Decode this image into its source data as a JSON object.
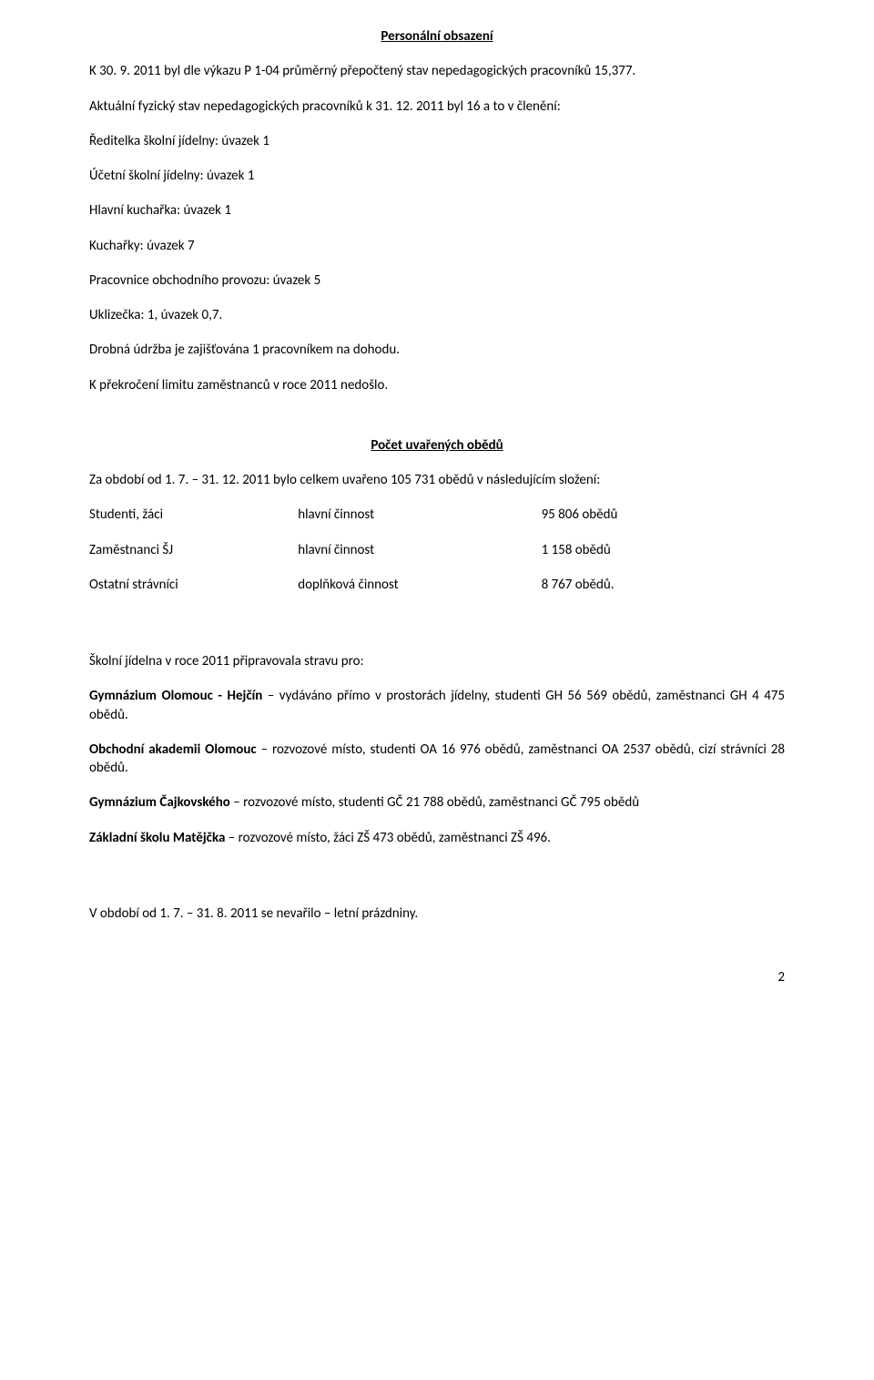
{
  "sec1": {
    "heading": "Personální obsazení",
    "p1": "K 30. 9. 2011 byl dle výkazu P 1-04 průměrný přepočtený stav nepedagogických pracovníků 15,377.",
    "p2": "Aktuální fyzický stav nepedagogických pracovníků k 31. 12. 2011 byl 16 a to v členění:",
    "l1": "Ředitelka školní jídelny: úvazek 1",
    "l2": "Účetní školní jídelny: úvazek 1",
    "l3": "Hlavní kuchařka: úvazek 1",
    "l4": "Kuchařky: úvazek 7",
    "l5": "Pracovnice obchodního provozu: úvazek 5",
    "l6": "Uklizečka: 1, úvazek 0,7.",
    "p3": "Drobná údržba je zajišťována 1 pracovníkem na dohodu.",
    "p4": "K překročení limitu zaměstnanců v roce 2011 nedošlo."
  },
  "sec2": {
    "heading": "Počet uvařených obědů",
    "p1": "Za období od 1. 7. – 31. 12. 2011 bylo celkem uvařeno 105 731 obědů v následujícím složení:"
  },
  "table": {
    "r1c1": "Studenti, žáci",
    "r1c2": "hlavní činnost",
    "r1c3": "95 806 obědů",
    "r2c1": "Zaměstnanci ŠJ",
    "r2c2": "hlavní činnost",
    "r2c3": "1 158 obědů",
    "r3c1": "Ostatní strávníci",
    "r3c2": "doplňková činnost",
    "r3c3": "8 767 obědů."
  },
  "sec3": {
    "p1": "Školní jídelna v roce 2011 připravovala stravu pro:",
    "p2a": "Gymnázium Olomouc - Hejčín",
    "p2b": " – vydáváno přímo v prostorách jídelny, studenti GH 56 569 obědů, zaměstnanci GH 4 475 obědů.",
    "p3a": "Obchodní akademii Olomouc",
    "p3b": " – rozvozové místo, studenti OA 16 976 obědů, zaměstnanci OA 2537 obědů, cizí strávníci 28 obědů.",
    "p4a": "Gymnázium Čajkovského",
    "p4b": " – rozvozové místo, studenti GČ  21  788 obědů, zaměstnanci GČ 795 obědů",
    "p5a": "Základní školu Matějčka",
    "p5b": " – rozvozové místo, žáci ZŠ 473 obědů, zaměstnanci ZŠ 496."
  },
  "sec4": {
    "p1": "V období od 1. 7. – 31. 8. 2011 se nevařilo – letní prázdniny."
  },
  "page_number": "2"
}
